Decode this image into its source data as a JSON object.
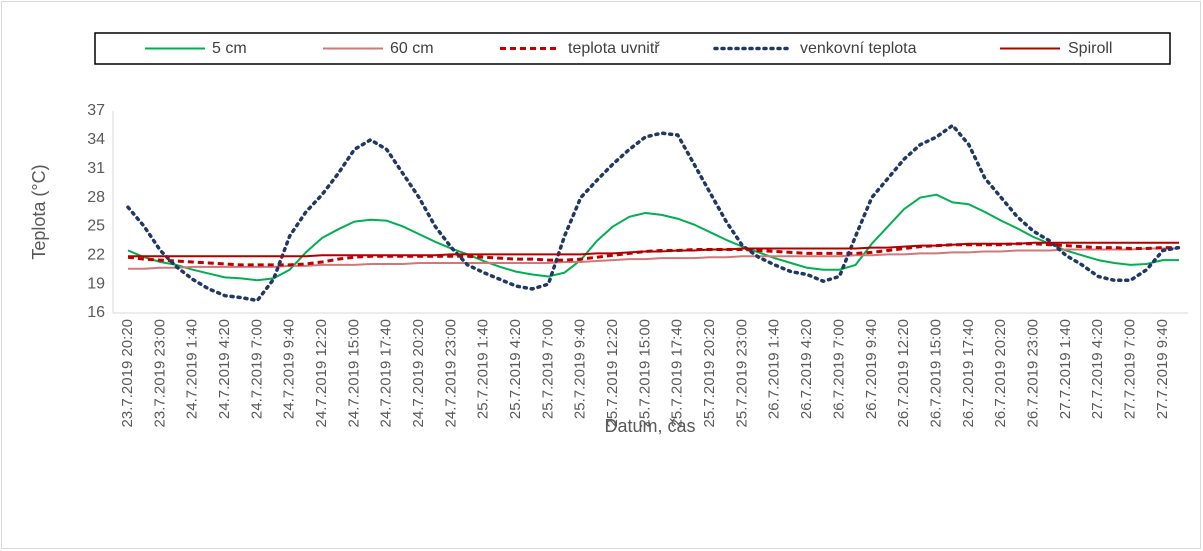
{
  "chart_data": {
    "type": "line",
    "y_label": "Teplota (°C)",
    "x_label": "Datum, čas",
    "ylim": [
      16,
      37
    ],
    "yticks": [
      16,
      19,
      22,
      25,
      28,
      31,
      34,
      37
    ],
    "categories": [
      "23.7.2019 20:20",
      null,
      "23.7.2019 23:00",
      null,
      "24.7.2019 1:40",
      null,
      "24.7.2019 4:20",
      null,
      "24.7.2019 7:00",
      null,
      "24.7.2019 9:40",
      null,
      "24.7.2019 12:20",
      null,
      "24.7.2019 15:00",
      null,
      "24.7.2019 17:40",
      null,
      "24.7.2019 20:20",
      null,
      "24.7.2019 23:00",
      null,
      "25.7.2019 1:40",
      null,
      "25.7.2019 4:20",
      null,
      "25.7.2019 7:00",
      null,
      "25.7.2019 9:40",
      null,
      "25.7.2019 12:20",
      null,
      "25.7.2019 15:00",
      null,
      "25.7.2019 17:40",
      null,
      "25.7.2019 20:20",
      null,
      "25.7.2019 23:00",
      null,
      "26.7.2019 1:40",
      null,
      "26.7.2019 4:20",
      null,
      "26.7.2019 7:00",
      null,
      "26.7.2019 9:40",
      null,
      "26.7.2019 12:20",
      null,
      "26.7.2019 15:00",
      null,
      "26.7.2019 17:40",
      null,
      "26.7.2019 20:20",
      null,
      "26.7.2019 23:00",
      null,
      "27.7.2019 1:40",
      null,
      "27.7.2019 4:20",
      null,
      "27.7.2019 7:00",
      null,
      "27.7.2019 9:40",
      null
    ],
    "series": [
      {
        "name": "5 cm",
        "color": "#00b050",
        "dash": "solid",
        "values": [
          22.5,
          21.8,
          21.3,
          21,
          20.5,
          20.1,
          19.7,
          19.6,
          19.4,
          19.6,
          20.5,
          22.3,
          23.8,
          24.7,
          25.5,
          25.7,
          25.6,
          25,
          24.2,
          23.4,
          22.7,
          22.1,
          21.4,
          20.8,
          20.3,
          20,
          19.8,
          20.2,
          21.5,
          23.5,
          25,
          26,
          26.4,
          26.2,
          25.8,
          25.2,
          24.4,
          23.6,
          22.9,
          22.3,
          21.7,
          21.2,
          20.7,
          20.5,
          20.5,
          21,
          23.2,
          25,
          26.8,
          28,
          28.3,
          27.5,
          27.3,
          26.5,
          25.6,
          24.8,
          23.9,
          23.2,
          22.5,
          22,
          21.5,
          21.2,
          21,
          21.1,
          21.5,
          21.5
        ]
      },
      {
        "name": "60 cm",
        "color": "#d07878",
        "dash": "solid",
        "values": [
          20.6,
          20.6,
          20.7,
          20.7,
          20.8,
          20.8,
          20.8,
          20.8,
          20.8,
          20.8,
          20.9,
          20.9,
          21,
          21,
          21,
          21.1,
          21.1,
          21.1,
          21.2,
          21.2,
          21.2,
          21.2,
          21.2,
          21.2,
          21.2,
          21.2,
          21.2,
          21.3,
          21.3,
          21.4,
          21.5,
          21.6,
          21.6,
          21.7,
          21.7,
          21.7,
          21.8,
          21.8,
          21.9,
          21.9,
          21.9,
          21.9,
          21.9,
          21.9,
          21.9,
          22,
          22,
          22.1,
          22.1,
          22.2,
          22.2,
          22.3,
          22.3,
          22.4,
          22.4,
          22.5,
          22.5,
          22.5,
          22.6,
          22.6,
          22.6,
          22.6,
          22.6,
          22.7,
          22.7,
          22.7
        ]
      },
      {
        "name": "teplota uvnitř",
        "color": "#c00000",
        "dash": "dashed",
        "values": [
          21.8,
          21.6,
          21.5,
          21.4,
          21.3,
          21.2,
          21.1,
          21,
          21,
          21,
          21,
          21.1,
          21.3,
          21.6,
          21.8,
          21.9,
          21.9,
          21.9,
          21.9,
          21.9,
          21.9,
          21.9,
          21.8,
          21.7,
          21.6,
          21.6,
          21.5,
          21.5,
          21.6,
          21.8,
          22,
          22.2,
          22.4,
          22.5,
          22.5,
          22.6,
          22.6,
          22.6,
          22.6,
          22.5,
          22.4,
          22.3,
          22.2,
          22.2,
          22.2,
          22.2,
          22.3,
          22.5,
          22.7,
          22.9,
          23,
          23.1,
          23.1,
          23.1,
          23.1,
          23.2,
          23.2,
          23.1,
          23,
          22.9,
          22.8,
          22.8,
          22.7,
          22.7,
          22.8,
          22.8
        ]
      },
      {
        "name": "venkovní teplota",
        "color": "#1f3864",
        "dash": "dotted",
        "values": [
          27,
          25,
          22.5,
          20.8,
          19.5,
          18.5,
          17.8,
          17.6,
          17.3,
          19.5,
          24,
          26.5,
          28.3,
          30.5,
          33,
          34,
          33,
          30.5,
          28,
          25,
          22.8,
          21,
          20.2,
          19.5,
          18.8,
          18.5,
          19,
          24,
          28,
          29.8,
          31.5,
          33,
          34.3,
          34.7,
          34.5,
          31.5,
          28.5,
          25.5,
          23,
          21.8,
          21,
          20.3,
          20,
          19.3,
          19.8,
          24,
          28,
          30,
          32,
          33.5,
          34.3,
          35.5,
          33.5,
          30,
          28,
          26,
          24.5,
          23.5,
          22,
          21,
          19.8,
          19.4,
          19.4,
          20.5,
          22.5,
          22.8
        ]
      },
      {
        "name": "Spiroll",
        "color": "#b00000",
        "dash": "solid",
        "values": [
          21.9,
          21.9,
          21.9,
          21.9,
          21.9,
          21.9,
          21.9,
          21.9,
          21.9,
          21.9,
          21.9,
          21.9,
          22,
          22,
          22,
          22,
          22,
          22,
          22,
          22,
          22.1,
          22.1,
          22.1,
          22.1,
          22.1,
          22.1,
          22.1,
          22.1,
          22.1,
          22.2,
          22.2,
          22.3,
          22.4,
          22.4,
          22.5,
          22.5,
          22.6,
          22.6,
          22.7,
          22.7,
          22.7,
          22.7,
          22.7,
          22.7,
          22.7,
          22.7,
          22.8,
          22.8,
          22.9,
          23,
          23,
          23.1,
          23.2,
          23.2,
          23.2,
          23.2,
          23.3,
          23.3,
          23.3,
          23.3,
          23.3,
          23.3,
          23.3,
          23.3,
          23.3,
          23.3
        ]
      }
    ]
  }
}
